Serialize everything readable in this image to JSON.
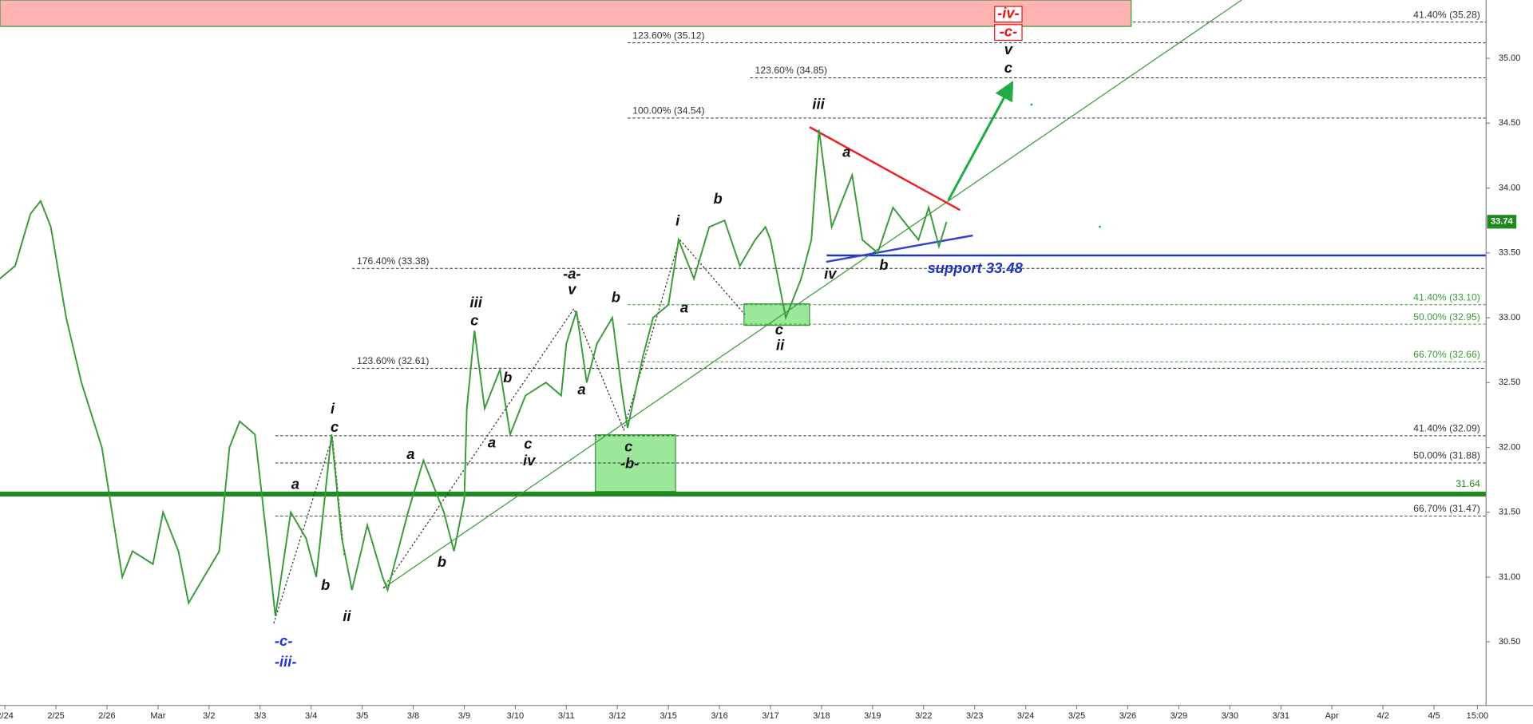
{
  "chart_data": {
    "type": "line",
    "xlim": [
      -0.096,
      29.02
    ],
    "ylim": [
      30.01,
      35.45
    ],
    "xticks": [
      {
        "value": 0,
        "label": "2/24"
      },
      {
        "value": 1,
        "label": "2/25"
      },
      {
        "value": 2,
        "label": "2/26"
      },
      {
        "value": 3,
        "label": "Mar"
      },
      {
        "value": 4,
        "label": "3/2"
      },
      {
        "value": 5,
        "label": "3/3"
      },
      {
        "value": 6,
        "label": "3/4"
      },
      {
        "value": 7,
        "label": "3/5"
      },
      {
        "value": 8,
        "label": "3/8"
      },
      {
        "value": 9,
        "label": "3/9"
      },
      {
        "value": 10,
        "label": "3/10"
      },
      {
        "value": 11,
        "label": "3/11"
      },
      {
        "value": 12,
        "label": "3/12"
      },
      {
        "value": 13,
        "label": "3/15"
      },
      {
        "value": 14,
        "label": "3/16"
      },
      {
        "value": 15,
        "label": "3/17"
      },
      {
        "value": 16,
        "label": "3/18"
      },
      {
        "value": 17,
        "label": "3/19"
      },
      {
        "value": 18,
        "label": "3/22"
      },
      {
        "value": 19,
        "label": "3/23"
      },
      {
        "value": 20,
        "label": "3/24"
      },
      {
        "value": 21,
        "label": "3/25"
      },
      {
        "value": 22,
        "label": "3/26"
      },
      {
        "value": 23,
        "label": "3/29"
      },
      {
        "value": 24,
        "label": "3/30"
      },
      {
        "value": 25,
        "label": "3/31"
      },
      {
        "value": 26,
        "label": "Apr"
      },
      {
        "value": 27,
        "label": "4/2"
      },
      {
        "value": 28,
        "label": "4/5"
      },
      {
        "value": 28.85,
        "label": "15:00"
      }
    ],
    "yticks": [
      {
        "value": 30.5,
        "label": "30.50"
      },
      {
        "value": 31,
        "label": "31.00"
      },
      {
        "value": 31.5,
        "label": "31.50"
      },
      {
        "value": 32,
        "label": "32.00"
      },
      {
        "value": 32.5,
        "label": "32.50"
      },
      {
        "value": 33,
        "label": "33.00"
      },
      {
        "value": 33.5,
        "label": "33.50"
      },
      {
        "value": 34,
        "label": "34.00"
      },
      {
        "value": 34.5,
        "label": "34.50"
      },
      {
        "value": 35,
        "label": "35.00"
      }
    ],
    "color": "#3a9a3a",
    "x": [
      -0.1,
      0.2,
      0.5,
      0.7,
      0.9,
      1.2,
      1.5,
      1.9,
      2.1,
      2.3,
      2.5,
      2.9,
      3.1,
      3.4,
      3.6,
      3.9,
      4.2,
      4.4,
      4.6,
      4.9,
      5.1,
      5.3,
      5.6,
      5.9,
      6.1,
      6.4,
      6.6,
      6.8,
      7.1,
      7.4,
      7.5,
      7.9,
      8.2,
      8.6,
      8.8,
      9.0,
      9.05,
      9.2,
      9.4,
      9.7,
      9.9,
      10.2,
      10.6,
      10.9,
      11.0,
      11.2,
      11.4,
      11.6,
      11.9,
      12.1,
      12.2,
      12.5,
      12.7,
      13.0,
      13.2,
      13.5,
      13.8,
      14.1,
      14.4,
      14.7,
      14.9,
      15.0,
      15.3,
      15.6,
      15.8,
      15.95,
      16.2,
      16.4,
      16.6,
      16.8,
      17.1,
      17.4,
      17.7,
      17.9,
      18.1,
      18.3,
      18.45
    ],
    "values": [
      33.3,
      33.4,
      33.8,
      33.9,
      33.7,
      33.0,
      32.5,
      32.0,
      31.5,
      31.0,
      31.2,
      31.1,
      31.5,
      31.2,
      30.8,
      31.0,
      31.2,
      32.0,
      32.2,
      32.1,
      31.4,
      30.7,
      31.5,
      31.3,
      31.0,
      32.1,
      31.3,
      30.9,
      31.4,
      31.0,
      30.9,
      31.5,
      31.9,
      31.5,
      31.2,
      31.6,
      32.3,
      32.9,
      32.3,
      32.6,
      32.1,
      32.4,
      32.5,
      32.4,
      32.8,
      33.05,
      32.5,
      32.8,
      33.0,
      32.4,
      32.15,
      32.7,
      33.0,
      33.1,
      33.6,
      33.3,
      33.7,
      33.75,
      33.4,
      33.6,
      33.7,
      33.6,
      33.0,
      33.3,
      33.6,
      34.45,
      33.7,
      33.9,
      34.1,
      33.6,
      33.5,
      33.85,
      33.7,
      33.6,
      33.85,
      33.55,
      33.74
    ],
    "last_price": 33.74,
    "levels": [
      {
        "label": "41.40% (35.28)",
        "value": 35.28,
        "from": 22.1,
        "side": "right",
        "color": "#333333",
        "style": "dashed"
      },
      {
        "label": "123.60% (35.12)",
        "value": 35.12,
        "from": 12.2,
        "side": "left",
        "color": "#333333",
        "style": "dashed"
      },
      {
        "label": "123.60% (34.85)",
        "value": 34.85,
        "from": 14.6,
        "side": "left",
        "color": "#333333",
        "style": "dashed"
      },
      {
        "label": "100.00% (34.54)",
        "value": 34.54,
        "from": 12.2,
        "side": "left",
        "color": "#333333",
        "style": "dashed"
      },
      {
        "label": "176.40% (33.38)",
        "value": 33.38,
        "from": 6.8,
        "side": "left",
        "color": "#333333",
        "style": "dashed"
      },
      {
        "label": "41.40% (33.10)",
        "value": 33.1,
        "from": 12.2,
        "side": "right",
        "color": "#3a9a3a",
        "style": "dashed"
      },
      {
        "label": "50.00% (32.95)",
        "value": 32.95,
        "from": 12.2,
        "side": "right",
        "color": "#3a9a3a",
        "style": "dashed"
      },
      {
        "label": "66.70% (32.66)",
        "value": 32.66,
        "from": 12.2,
        "side": "right",
        "color": "#3a9a3a",
        "style": "dashed"
      },
      {
        "label": "123.60% (32.61)",
        "value": 32.61,
        "from": 6.8,
        "side": "left",
        "color": "#333333",
        "style": "dashed"
      },
      {
        "label": "41.40% (32.09)",
        "value": 32.09,
        "from": 5.3,
        "side": "right",
        "color": "#333333",
        "style": "dashed"
      },
      {
        "label": "50.00% (31.88)",
        "value": 31.88,
        "from": 5.3,
        "side": "right",
        "color": "#333333",
        "style": "dashed"
      },
      {
        "label": "66.70% (31.47)",
        "value": 31.47,
        "from": 5.3,
        "side": "right",
        "color": "#333333",
        "style": "dashed"
      },
      {
        "label": "31.64",
        "value": 31.64,
        "from": -0.1,
        "side": "right",
        "color": "#1f8a1f",
        "style": "thick"
      }
    ],
    "support": {
      "label": "support 33.48",
      "value": 33.48,
      "from": 16.1,
      "color": "#2233bb"
    },
    "annotations": [
      {
        "text": "a",
        "x": 5.69,
        "y": 31.71,
        "color": "black"
      },
      {
        "text": "b",
        "x": 6.28,
        "y": 30.93,
        "color": "black"
      },
      {
        "text": "i",
        "x": 6.42,
        "y": 32.29,
        "color": "black"
      },
      {
        "text": "c",
        "x": 6.46,
        "y": 32.15,
        "color": "black"
      },
      {
        "text": "ii",
        "x": 6.7,
        "y": 30.69,
        "color": "black"
      },
      {
        "text": "a",
        "x": 7.95,
        "y": 31.94,
        "color": "black"
      },
      {
        "text": "b",
        "x": 8.56,
        "y": 31.11,
        "color": "black"
      },
      {
        "text": "iii",
        "x": 9.23,
        "y": 33.11,
        "color": "black"
      },
      {
        "text": "c",
        "x": 9.2,
        "y": 32.97,
        "color": "black"
      },
      {
        "text": "b",
        "x": 9.85,
        "y": 32.53,
        "color": "black"
      },
      {
        "text": "a",
        "x": 9.54,
        "y": 32.03,
        "color": "black"
      },
      {
        "text": "c",
        "x": 10.25,
        "y": 32.02,
        "color": "black"
      },
      {
        "text": "iv",
        "x": 10.27,
        "y": 31.89,
        "color": "black"
      },
      {
        "text": "-a-",
        "x": 11.11,
        "y": 33.33,
        "color": "black"
      },
      {
        "text": "v",
        "x": 11.11,
        "y": 33.21,
        "color": "black"
      },
      {
        "text": "b",
        "x": 11.97,
        "y": 33.15,
        "color": "black"
      },
      {
        "text": "a",
        "x": 11.3,
        "y": 32.44,
        "color": "black"
      },
      {
        "text": "c",
        "x": 12.22,
        "y": 32.0,
        "color": "black"
      },
      {
        "text": "-b-",
        "x": 12.24,
        "y": 31.87,
        "color": "black"
      },
      {
        "text": "i",
        "x": 13.18,
        "y": 33.74,
        "color": "black"
      },
      {
        "text": "b",
        "x": 13.97,
        "y": 33.91,
        "color": "black"
      },
      {
        "text": "a",
        "x": 13.31,
        "y": 33.07,
        "color": "black"
      },
      {
        "text": "c",
        "x": 15.17,
        "y": 32.9,
        "color": "black"
      },
      {
        "text": "ii",
        "x": 15.19,
        "y": 32.78,
        "color": "black"
      },
      {
        "text": "iii",
        "x": 15.94,
        "y": 34.64,
        "color": "black"
      },
      {
        "text": "a",
        "x": 16.49,
        "y": 34.27,
        "color": "black"
      },
      {
        "text": "iv",
        "x": 16.17,
        "y": 33.33,
        "color": "black"
      },
      {
        "text": "b",
        "x": 17.22,
        "y": 33.4,
        "color": "black"
      },
      {
        "text": "v",
        "x": 19.66,
        "y": 35.06,
        "color": "black"
      },
      {
        "text": "c",
        "x": 19.66,
        "y": 34.92,
        "color": "black"
      },
      {
        "text": "-c-",
        "x": 5.46,
        "y": 30.5,
        "color": "blue"
      },
      {
        "text": "-iii-",
        "x": 5.5,
        "y": 30.34,
        "color": "blue"
      },
      {
        "text": "-iv-",
        "x": 19.66,
        "y": 35.34,
        "color": "red"
      },
      {
        "text": "-c-",
        "x": 19.66,
        "y": 35.2,
        "color": "red"
      }
    ]
  }
}
